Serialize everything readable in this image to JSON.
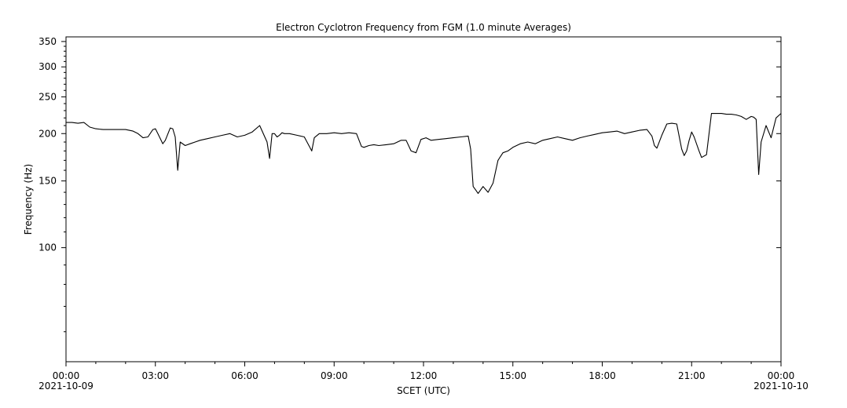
{
  "chart_data": {
    "type": "line",
    "title": "Electron Cyclotron Frequency from FGM (1.0 minute Averages)",
    "xlabel": "SCET (UTC)",
    "ylabel": "Frequency (Hz)",
    "y_scale": "log",
    "ylim": [
      50,
      360
    ],
    "xlim": [
      "2021-10-09 00:00",
      "2021-10-10 00:00"
    ],
    "yticks_labeled": [
      100,
      150,
      200,
      250,
      300,
      350
    ],
    "yticks_minor": [
      60,
      70,
      80,
      90,
      110,
      120,
      130,
      140,
      160,
      170,
      180,
      190,
      210,
      220,
      230,
      240,
      260,
      270,
      280,
      290,
      310,
      320,
      330,
      340
    ],
    "xticks": [
      {
        "time": "2021-10-09 00:00",
        "label": "00:00",
        "date": "2021-10-09"
      },
      {
        "time": "2021-10-09 03:00",
        "label": "03:00"
      },
      {
        "time": "2021-10-09 06:00",
        "label": "06:00"
      },
      {
        "time": "2021-10-09 09:00",
        "label": "09:00"
      },
      {
        "time": "2021-10-09 12:00",
        "label": "12:00"
      },
      {
        "time": "2021-10-09 15:00",
        "label": "15:00"
      },
      {
        "time": "2021-10-09 18:00",
        "label": "18:00"
      },
      {
        "time": "2021-10-09 21:00",
        "label": "21:00"
      },
      {
        "time": "2021-10-10 00:00",
        "label": "00:00",
        "date": "2021-10-10"
      }
    ],
    "grid": false,
    "series": [
      {
        "color": "#000000",
        "x": [
          "00:00",
          "00:12",
          "00:24",
          "00:36",
          "00:48",
          "01:00",
          "01:15",
          "01:30",
          "01:45",
          "02:00",
          "02:15",
          "02:25",
          "02:35",
          "02:45",
          "02:55",
          "03:00",
          "03:05",
          "03:15",
          "03:20",
          "03:30",
          "03:35",
          "03:40",
          "03:45",
          "03:50",
          "04:00",
          "04:10",
          "04:20",
          "04:30",
          "04:45",
          "05:00",
          "05:15",
          "05:30",
          "05:45",
          "06:00",
          "06:15",
          "06:30",
          "06:45",
          "06:50",
          "06:55",
          "07:00",
          "07:05",
          "07:10",
          "07:15",
          "07:20",
          "07:30",
          "07:45",
          "08:00",
          "08:15",
          "08:20",
          "08:30",
          "08:45",
          "09:00",
          "09:15",
          "09:30",
          "09:45",
          "09:55",
          "10:00",
          "10:10",
          "10:20",
          "10:30",
          "10:45",
          "11:00",
          "11:15",
          "11:25",
          "11:35",
          "11:45",
          "11:55",
          "12:05",
          "12:15",
          "12:30",
          "12:45",
          "13:00",
          "13:15",
          "13:30",
          "13:35",
          "13:40",
          "13:45",
          "13:50",
          "14:00",
          "14:10",
          "14:20",
          "14:30",
          "14:40",
          "14:50",
          "15:00",
          "15:15",
          "15:30",
          "15:45",
          "16:00",
          "16:15",
          "16:30",
          "16:45",
          "17:00",
          "17:15",
          "17:30",
          "17:45",
          "18:00",
          "18:15",
          "18:30",
          "18:45",
          "19:00",
          "19:15",
          "19:30",
          "19:40",
          "19:45",
          "19:50",
          "20:00",
          "20:10",
          "20:20",
          "20:30",
          "20:40",
          "20:45",
          "20:50",
          "20:55",
          "21:00",
          "21:05",
          "21:15",
          "21:20",
          "21:30",
          "21:40",
          "21:50",
          "22:00",
          "22:10",
          "22:20",
          "22:30",
          "22:40",
          "22:50",
          "23:00",
          "23:05",
          "23:10",
          "23:15",
          "23:20",
          "23:30",
          "23:40",
          "23:50",
          "24:00"
        ],
        "y": [
          214,
          214,
          213,
          214,
          208,
          206,
          205,
          205,
          205,
          205,
          203,
          200,
          195,
          196,
          205,
          206,
          200,
          188,
          192,
          207,
          206,
          196,
          160,
          190,
          186,
          188,
          190,
          192,
          194,
          196,
          198,
          200,
          196,
          198,
          202,
          210,
          190,
          172,
          200,
          200,
          196,
          198,
          201,
          200,
          200,
          198,
          196,
          180,
          195,
          200,
          200,
          201,
          200,
          201,
          200,
          185,
          184,
          186,
          187,
          186,
          187,
          188,
          192,
          192,
          180,
          178,
          193,
          195,
          192,
          193,
          194,
          195,
          196,
          197,
          182,
          145,
          142,
          139,
          145,
          140,
          148,
          170,
          178,
          180,
          184,
          188,
          190,
          188,
          192,
          194,
          196,
          194,
          192,
          195,
          197,
          199,
          201,
          202,
          203,
          200,
          202,
          204,
          205,
          197,
          186,
          183,
          198,
          212,
          213,
          212,
          182,
          175,
          180,
          192,
          202,
          196,
          180,
          173,
          176,
          226,
          226,
          226,
          225,
          225,
          224,
          222,
          218,
          222,
          221,
          218,
          156,
          190,
          210,
          195,
          220,
          226
        ]
      }
    ]
  }
}
